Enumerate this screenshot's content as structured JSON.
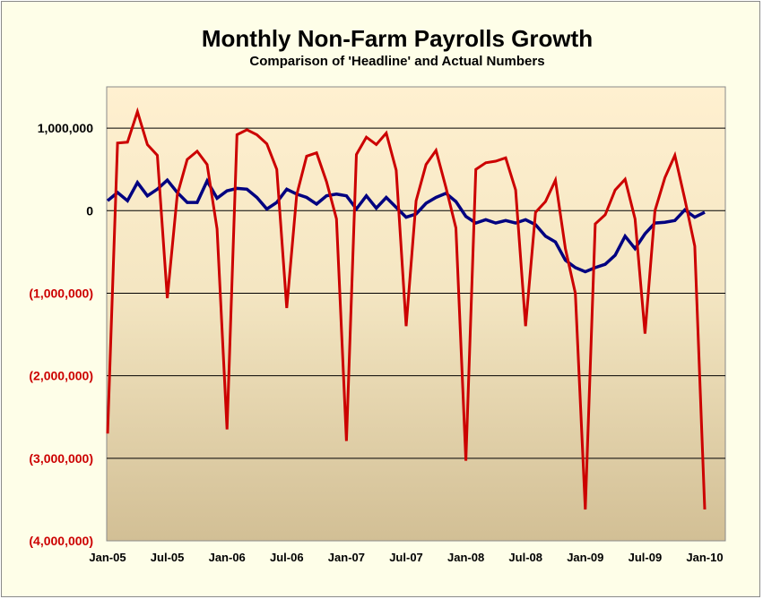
{
  "chart_data": {
    "type": "line",
    "title": "Monthly Non-Farm Payrolls Growth",
    "subtitle": "Comparison of 'Headline' and Actual Numbers",
    "ylim": [
      -4000000,
      1500000
    ],
    "y_ticks": [
      {
        "value": 1000000,
        "label": "1,000,000"
      },
      {
        "value": 0,
        "label": "0"
      },
      {
        "value": -1000000,
        "label": "(1,000,000)"
      },
      {
        "value": -2000000,
        "label": "(2,000,000)"
      },
      {
        "value": -3000000,
        "label": "(3,000,000)"
      },
      {
        "value": -4000000,
        "label": "(4,000,000)"
      }
    ],
    "x_ticks": [
      {
        "index": 0,
        "label": "Jan-05"
      },
      {
        "index": 6,
        "label": "Jul-05"
      },
      {
        "index": 12,
        "label": "Jan-06"
      },
      {
        "index": 18,
        "label": "Jul-06"
      },
      {
        "index": 24,
        "label": "Jan-07"
      },
      {
        "index": 30,
        "label": "Jul-07"
      },
      {
        "index": 36,
        "label": "Jan-08"
      },
      {
        "index": 42,
        "label": "Jul-08"
      },
      {
        "index": 48,
        "label": "Jan-09"
      },
      {
        "index": 54,
        "label": "Jul-09"
      },
      {
        "index": 60,
        "label": "Jan-10"
      }
    ],
    "grid": true,
    "legend": "none",
    "colors": {
      "plot_top": "#fff0d0",
      "plot_bottom": "#d2bf95",
      "positive_tick": "#000000",
      "negative_tick": "#cc0000",
      "series_headline": "#000080",
      "series_actual": "#cc0000"
    },
    "series": [
      {
        "key": "headline",
        "color": "#000080",
        "values": [
          120000,
          220000,
          120000,
          340000,
          180000,
          260000,
          370000,
          220000,
          100000,
          100000,
          360000,
          150000,
          240000,
          270000,
          260000,
          160000,
          20000,
          100000,
          260000,
          200000,
          160000,
          80000,
          180000,
          200000,
          180000,
          20000,
          180000,
          30000,
          160000,
          40000,
          -80000,
          -40000,
          90000,
          160000,
          210000,
          110000,
          -70000,
          -150000,
          -110000,
          -150000,
          -120000,
          -150000,
          -110000,
          -170000,
          -310000,
          -380000,
          -600000,
          -690000,
          -740000,
          -690000,
          -650000,
          -540000,
          -310000,
          -460000,
          -280000,
          -150000,
          -140000,
          -120000,
          10000,
          -80000,
          -20000
        ]
      },
      {
        "key": "actual",
        "color": "#cc0000",
        "values": [
          -2700000,
          820000,
          830000,
          1200000,
          800000,
          670000,
          -1060000,
          190000,
          620000,
          720000,
          560000,
          -220000,
          -2650000,
          920000,
          980000,
          920000,
          810000,
          500000,
          -1180000,
          190000,
          660000,
          700000,
          350000,
          -100000,
          -2790000,
          680000,
          890000,
          800000,
          940000,
          490000,
          -1400000,
          120000,
          560000,
          730000,
          280000,
          -210000,
          -3030000,
          500000,
          580000,
          600000,
          640000,
          250000,
          -1400000,
          -20000,
          110000,
          370000,
          -460000,
          -1000000,
          -3620000,
          -160000,
          -50000,
          250000,
          380000,
          -100000,
          -1490000,
          0,
          400000,
          670000,
          140000,
          -430000,
          -3620000
        ]
      }
    ]
  }
}
